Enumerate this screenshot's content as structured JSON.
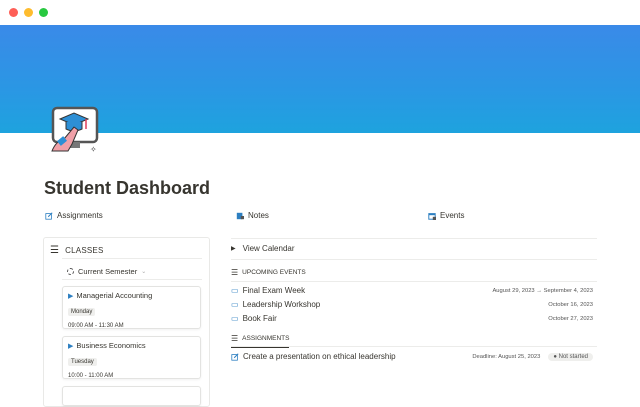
{
  "window": {
    "controls": [
      "close",
      "minimize",
      "maximize"
    ],
    "colors": {
      "close": "#fe5f57",
      "minimize": "#febc2e",
      "maximize": "#28c840"
    }
  },
  "banner": {
    "color_top": "#3a8ae8",
    "color_bottom": "#1ea3de"
  },
  "page": {
    "title": "Student Dashboard",
    "icon": "graduation-computer-icon"
  },
  "links": [
    {
      "label": "Assignments",
      "icon": "edit-icon"
    },
    {
      "label": "Notes",
      "icon": "notebook-icon"
    },
    {
      "label": "Events",
      "icon": "calendar-icon"
    }
  ],
  "classes": {
    "title": "CLASSES",
    "filter": "Current Semester",
    "items": [
      {
        "name": "Managerial Accounting",
        "day": "Monday",
        "time": "09:00 AM - 11:30 AM"
      },
      {
        "name": "Business Economics",
        "day": "Tuesday",
        "time": "10:00 - 11:00 AM"
      }
    ]
  },
  "calendar": {
    "toggle": "View Calendar"
  },
  "events": {
    "title": "UPCOMING EVENTS",
    "items": [
      {
        "name": "Final Exam Week",
        "date": "August 29, 2023 → September 4, 2023"
      },
      {
        "name": "Leadership Workshop",
        "date": "October 16, 2023"
      },
      {
        "name": "Book Fair",
        "date": "October 27, 2023"
      }
    ]
  },
  "assignments": {
    "title": "ASSIGNMENTS",
    "items": [
      {
        "name": "Create a presentation on ethical leadership",
        "deadline": "Deadline: August 25, 2023",
        "status": "Not started"
      }
    ]
  }
}
